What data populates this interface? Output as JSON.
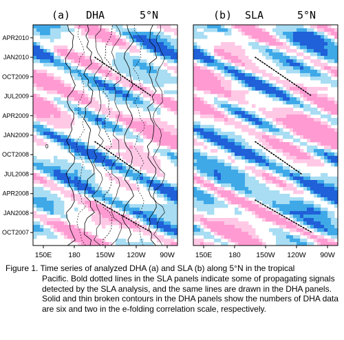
{
  "chart_data": [
    {
      "type": "heatmap",
      "panel_label": "(a)",
      "variable": "DHA",
      "latitude": "5°N",
      "x_ticks": [
        "150E",
        "180",
        "150W",
        "120W",
        "90W"
      ],
      "y_ticks": [
        "APR2010",
        "JAN2010",
        "OCT2009",
        "JUL2009",
        "APR2009",
        "JAN2009",
        "OCT2008",
        "JUL2008",
        "APR2008",
        "JAN2008",
        "OCT2007"
      ],
      "xlim": [
        "140E",
        "80W"
      ],
      "ylim": [
        "AUG2007",
        "JUN2010"
      ],
      "contour_marks": [
        "0"
      ],
      "colors": {
        "positive": "#ff9bd2",
        "negative": "#3fa9e8",
        "strong_negative": "#2060d8",
        "neutral": "#ffffff"
      },
      "propagating_lines": [
        {
          "from": [
            "160W",
            "JAN2010"
          ],
          "to": [
            "105W",
            "JUL2009"
          ]
        },
        {
          "from": [
            "160W",
            "DEC2008"
          ],
          "to": [
            "115W",
            "JUL2008"
          ]
        },
        {
          "from": [
            "160W",
            "MAR2008"
          ],
          "to": [
            "105W",
            "OCT2007"
          ]
        }
      ]
    },
    {
      "type": "heatmap",
      "panel_label": "(b)",
      "variable": "SLA",
      "latitude": "5°N",
      "x_ticks": [
        "150E",
        "180",
        "150W",
        "120W",
        "90W"
      ],
      "xlim": [
        "140E",
        "80W"
      ],
      "ylim": [
        "AUG2007",
        "JUN2010"
      ],
      "colors": {
        "positive": "#ff9bd2",
        "negative": "#3fa9e8",
        "strong_negative": "#2060d8",
        "neutral": "#ffffff"
      },
      "propagating_lines": [
        {
          "from": [
            "160W",
            "JAN2010"
          ],
          "to": [
            "105W",
            "JUL2009"
          ]
        },
        {
          "from": [
            "160W",
            "DEC2008"
          ],
          "to": [
            "115W",
            "JUL2008"
          ]
        },
        {
          "from": [
            "160W",
            "MAR2008"
          ],
          "to": [
            "105W",
            "OCT2007"
          ]
        }
      ]
    }
  ],
  "caption": {
    "first_line": "Figure 1. Time series of analyzed DHA (a) and SLA (b) along 5°N in the tropical",
    "rest": "Pacific. Bold dotted lines in the SLA panels indicate some of propagating signals detected by the SLA analysis, and the same lines are drawn in the DHA panels. Solid and thin broken contours in the DHA panels show the numbers of DHA data are six and two in the e-folding correlation scale, respectively."
  }
}
